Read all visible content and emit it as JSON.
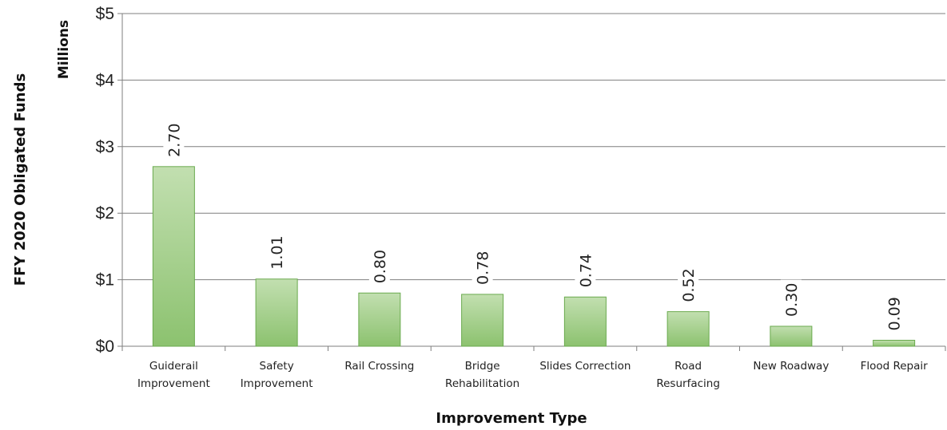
{
  "chart_data": {
    "type": "bar",
    "categories": [
      [
        "Guiderail",
        "Improvement"
      ],
      [
        "Safety",
        "Improvement"
      ],
      [
        "Rail Crossing"
      ],
      [
        "Bridge",
        "Rehabilitation"
      ],
      [
        "Slides Correction"
      ],
      [
        "Road",
        "Resurfacing"
      ],
      [
        "New Roadway"
      ],
      [
        "Flood Repair"
      ]
    ],
    "values": [
      2.7,
      1.01,
      0.8,
      0.78,
      0.74,
      0.52,
      0.3,
      0.09
    ],
    "data_labels": [
      "2.70",
      "1.01",
      "0.80",
      "0.78",
      "0.74",
      "0.52",
      "0.30",
      "0.09"
    ],
    "xlabel": "Improvement Type",
    "ylabel": "FFY 2020 Obligated Funds",
    "y_units": "Millions",
    "ylim": [
      0,
      5
    ],
    "y_ticks": [
      0,
      1,
      2,
      3,
      4,
      5
    ],
    "y_tick_labels": [
      "$0",
      "$1",
      "$2",
      "$3",
      "$4",
      "$5"
    ],
    "grid": true,
    "colors": {
      "bar_fill_top": "#c2dfb0",
      "bar_fill_bottom": "#8cc26f",
      "bar_stroke": "#6aaa4e",
      "grid": "#7f7f7f"
    }
  }
}
